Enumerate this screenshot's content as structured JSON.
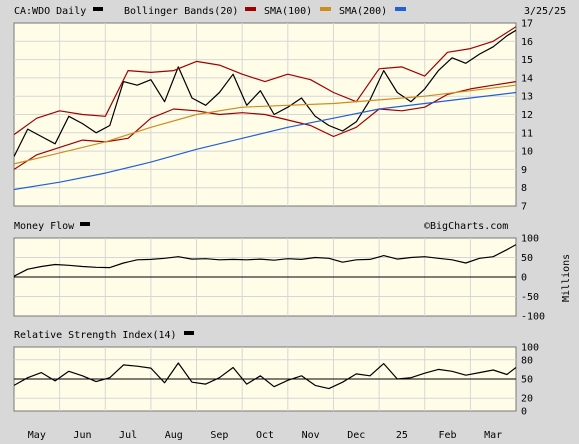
{
  "header": {
    "symbol": "CA:WDO Daily",
    "date": "3/25/25",
    "legend": [
      {
        "label": "Bollinger Bands(20)",
        "color": "#a00000"
      },
      {
        "label": "SMA(100)",
        "color": "#d08c1c"
      },
      {
        "label": "SMA(200)",
        "color": "#2060d8"
      }
    ]
  },
  "colors": {
    "plot_bg": "#fffde8",
    "price": "#000000",
    "bollinger": "#a00000",
    "sma100": "#d08c1c",
    "sma200": "#2060d8",
    "gridline": "#d6d6d6"
  },
  "x_axis": {
    "months": [
      "May",
      "Jun",
      "Jul",
      "Aug",
      "Sep",
      "Oct",
      "Nov",
      "Dec",
      "25",
      "Feb",
      "Mar"
    ],
    "month_positions": [
      0.5,
      1.5,
      2.5,
      3.5,
      4.5,
      5.5,
      6.5,
      7.5,
      8.5,
      9.5,
      10.5
    ],
    "range": [
      0,
      11
    ]
  },
  "chart_data": [
    {
      "type": "line",
      "panel": "price",
      "ylim": [
        7,
        17
      ],
      "yticks": [
        7,
        8,
        9,
        10,
        11,
        12,
        13,
        14,
        15,
        16,
        17
      ],
      "grid": true,
      "series": [
        {
          "name": "CA:WDO Daily",
          "x": [
            0,
            0.3,
            0.6,
            0.9,
            1.2,
            1.5,
            1.8,
            2.1,
            2.4,
            2.7,
            3.0,
            3.3,
            3.6,
            3.9,
            4.2,
            4.5,
            4.8,
            5.1,
            5.4,
            5.7,
            6.0,
            6.3,
            6.6,
            6.9,
            7.2,
            7.5,
            7.8,
            8.1,
            8.4,
            8.7,
            9.0,
            9.3,
            9.6,
            9.9,
            10.2,
            10.5,
            10.8,
            11.0
          ],
          "y": [
            9.7,
            11.2,
            10.8,
            10.4,
            11.9,
            11.5,
            11.0,
            11.4,
            13.8,
            13.6,
            13.9,
            12.7,
            14.6,
            12.9,
            12.5,
            13.2,
            14.2,
            12.5,
            13.3,
            12.0,
            12.4,
            12.9,
            11.9,
            11.4,
            11.1,
            11.6,
            12.8,
            14.4,
            13.2,
            12.7,
            13.4,
            14.4,
            15.1,
            14.8,
            15.3,
            15.7,
            16.3,
            16.6
          ]
        },
        {
          "name": "Bollinger Bands(20) upper",
          "x": [
            0,
            0.5,
            1.0,
            1.5,
            2.0,
            2.5,
            3.0,
            3.5,
            4.0,
            4.5,
            5.0,
            5.5,
            6.0,
            6.5,
            7.0,
            7.5,
            8.0,
            8.5,
            9.0,
            9.5,
            10.0,
            10.5,
            11.0
          ],
          "y": [
            10.9,
            11.8,
            12.2,
            12.0,
            11.9,
            14.4,
            14.3,
            14.4,
            14.9,
            14.7,
            14.2,
            13.8,
            14.2,
            13.9,
            13.2,
            12.7,
            14.5,
            14.6,
            14.1,
            15.4,
            15.6,
            16.0,
            16.8
          ]
        },
        {
          "name": "Bollinger Bands(20) lower",
          "x": [
            0,
            0.5,
            1.0,
            1.5,
            2.0,
            2.5,
            3.0,
            3.5,
            4.0,
            4.5,
            5.0,
            5.5,
            6.0,
            6.5,
            7.0,
            7.5,
            8.0,
            8.5,
            9.0,
            9.5,
            10.0,
            10.5,
            11.0
          ],
          "y": [
            9.0,
            9.8,
            10.2,
            10.6,
            10.5,
            10.7,
            11.8,
            12.3,
            12.2,
            12.0,
            12.1,
            12.0,
            11.7,
            11.4,
            10.8,
            11.3,
            12.3,
            12.2,
            12.4,
            13.1,
            13.4,
            13.6,
            13.8
          ]
        },
        {
          "name": "SMA(100)",
          "x": [
            0,
            1,
            2,
            3,
            4,
            5,
            6,
            7,
            8,
            9,
            10,
            11
          ],
          "y": [
            9.3,
            9.9,
            10.5,
            11.3,
            12.0,
            12.4,
            12.5,
            12.6,
            12.8,
            13.0,
            13.3,
            13.6
          ]
        },
        {
          "name": "SMA(200)",
          "x": [
            0,
            1,
            2,
            3,
            4,
            5,
            6,
            7,
            8,
            9,
            10,
            11
          ],
          "y": [
            7.9,
            8.3,
            8.8,
            9.4,
            10.1,
            10.7,
            11.3,
            11.8,
            12.3,
            12.6,
            12.9,
            13.2
          ]
        }
      ]
    },
    {
      "type": "line",
      "panel": "money_flow",
      "title": "Money Flow",
      "ylabel": "Millions",
      "ylim": [
        -100,
        100
      ],
      "yticks": [
        100,
        50,
        0,
        -50,
        -100
      ],
      "grid": true,
      "series": [
        {
          "name": "Money Flow",
          "x": [
            0,
            0.3,
            0.6,
            0.9,
            1.2,
            1.5,
            1.8,
            2.1,
            2.4,
            2.7,
            3.0,
            3.3,
            3.6,
            3.9,
            4.2,
            4.5,
            4.8,
            5.1,
            5.4,
            5.7,
            6.0,
            6.3,
            6.6,
            6.9,
            7.2,
            7.5,
            7.8,
            8.1,
            8.4,
            8.7,
            9.0,
            9.3,
            9.6,
            9.9,
            10.2,
            10.5,
            10.8,
            11.0
          ],
          "y": [
            2,
            20,
            27,
            32,
            30,
            27,
            25,
            24,
            36,
            44,
            45,
            48,
            52,
            46,
            47,
            44,
            45,
            44,
            46,
            43,
            47,
            45,
            50,
            48,
            38,
            44,
            45,
            55,
            46,
            50,
            52,
            48,
            44,
            36,
            48,
            52,
            70,
            83
          ]
        }
      ]
    },
    {
      "type": "line",
      "panel": "rsi",
      "title": "Relative Strength Index(14)",
      "ylim": [
        0,
        100
      ],
      "yticks": [
        100,
        80,
        50,
        20,
        0
      ],
      "reference_line": 50,
      "grid": true,
      "series": [
        {
          "name": "Relative Strength Index(14)",
          "x": [
            0,
            0.3,
            0.6,
            0.9,
            1.2,
            1.5,
            1.8,
            2.1,
            2.4,
            2.7,
            3.0,
            3.3,
            3.6,
            3.9,
            4.2,
            4.5,
            4.8,
            5.1,
            5.4,
            5.7,
            6.0,
            6.3,
            6.6,
            6.9,
            7.2,
            7.5,
            7.8,
            8.1,
            8.4,
            8.7,
            9.0,
            9.3,
            9.6,
            9.9,
            10.2,
            10.5,
            10.8,
            11.0
          ],
          "y": [
            40,
            52,
            60,
            47,
            62,
            55,
            46,
            52,
            72,
            70,
            67,
            44,
            75,
            45,
            42,
            52,
            68,
            42,
            55,
            38,
            48,
            55,
            40,
            35,
            45,
            58,
            55,
            74,
            50,
            52,
            59,
            65,
            62,
            56,
            60,
            64,
            57,
            68
          ]
        }
      ]
    }
  ],
  "watermark": "©BigCharts.com"
}
